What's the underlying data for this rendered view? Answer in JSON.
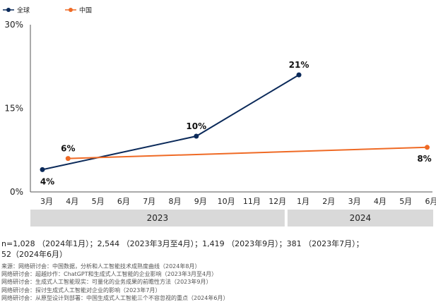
{
  "chart_data": {
    "type": "line",
    "legend": {
      "position": "top-left"
    },
    "series": [
      {
        "name": "全球",
        "color": "#0b2a5a",
        "points": [
          {
            "month": "3月",
            "year": "2023",
            "value": 4,
            "label": "4%"
          },
          {
            "month": "9月",
            "year": "2023",
            "value": 10,
            "label": "10%"
          },
          {
            "month": "1月",
            "year": "2024",
            "value": 21,
            "label": "21%"
          }
        ]
      },
      {
        "name": "中国",
        "color": "#ef6a25",
        "points": [
          {
            "month": "4月",
            "year": "2023",
            "value": 6,
            "label": "6%"
          },
          {
            "month": "6月",
            "year": "2024",
            "value": 8,
            "label": "8%"
          }
        ]
      }
    ],
    "x_categories": [
      "3月",
      "4月",
      "5月",
      "6月",
      "7月",
      "8月",
      "9月",
      "10月",
      "11月",
      "12月",
      "1月",
      "2月",
      "3月",
      "4月",
      "5月",
      "6月"
    ],
    "year_groups": [
      {
        "label": "2023",
        "span": 10
      },
      {
        "label": "2024",
        "span": 6
      }
    ],
    "y_ticks": [
      "0%",
      "15%",
      "30%"
    ],
    "ylim": [
      0,
      30
    ],
    "grid": false
  },
  "sample_note": [
    "n=1,028 （2024年1月）；2,544 （2023年3月至4月）；1,419 （2023年9月）；381 （2023年7月）；",
    "52（2024年6月）"
  ],
  "sources": [
    "来源：网络研讨会：中国数据，分析和人工智能技术成熟度曲线（2024年8月）",
    "网络研讨会：超越炒作：ChatGPT和生成式人工智能的企业影响（2023年3月至4月）",
    "网络研讨会：生成式人工智能现实：可量化的业务成果的前瞻性方法（2023年9月）",
    "网络研讨会：探讨生成式人工智能对企业的影响（2023年7月）",
    "网络研讨会：从原型设计到部署：中国生成式人工智能三个不容忽视的重点（2024年6月）"
  ]
}
